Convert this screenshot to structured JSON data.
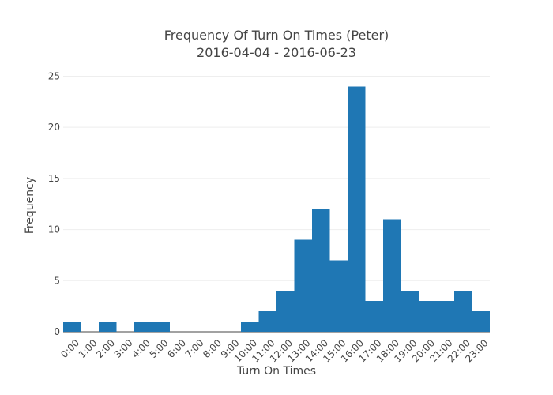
{
  "chart_data": {
    "type": "bar",
    "title": "Frequency Of Turn On Times (Peter)",
    "subtitle": "2016-04-04 - 2016-06-23",
    "xlabel": "Turn On Times",
    "ylabel": "Frequency",
    "categories": [
      "0:00",
      "1:00",
      "2:00",
      "3:00",
      "4:00",
      "5:00",
      "6:00",
      "7:00",
      "8:00",
      "9:00",
      "10:00",
      "11:00",
      "12:00",
      "13:00",
      "14:00",
      "15:00",
      "16:00",
      "17:00",
      "18:00",
      "19:00",
      "20:00",
      "21:00",
      "22:00",
      "23:00"
    ],
    "values": [
      1,
      0,
      1,
      0,
      1,
      1,
      0,
      0,
      0,
      0,
      1,
      2,
      4,
      9,
      12,
      7,
      24,
      3,
      11,
      4,
      3,
      3,
      4,
      2
    ],
    "ylim": [
      0,
      25.5
    ],
    "yticks": [
      0,
      5,
      10,
      15,
      20,
      25
    ],
    "grid": true,
    "colors": {
      "bar": "#1f77b4",
      "grid": "#eeeeee",
      "text": "#444444"
    }
  }
}
